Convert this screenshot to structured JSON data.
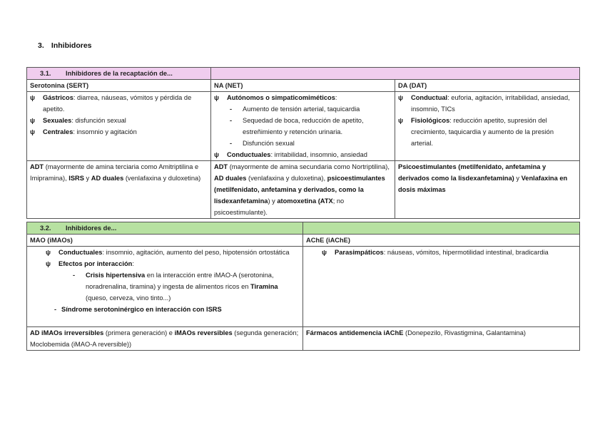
{
  "heading": {
    "number": "3.",
    "text": "Inhibidores"
  },
  "colors": {
    "pink_header": "#f0cdee",
    "green_header": "#b7e1a1"
  },
  "table1": {
    "header": {
      "number": "3.1.",
      "label": "Inhibidores de la recaptación de..."
    },
    "columns": [
      "Serotonina (SERT)",
      "NA (NET)",
      "DA (DAT)"
    ],
    "effects": [
      [
        {
          "type": "bullet",
          "marker": "ψ",
          "segs": [
            {
              "b": true,
              "t": "Gástricos"
            },
            {
              "t": ": diarrea, náuseas, vómitos y pérdida de apetito."
            }
          ]
        },
        {
          "type": "bullet",
          "marker": "ψ",
          "segs": [
            {
              "b": true,
              "t": "Sexuales"
            },
            {
              "t": ": disfunción sexual"
            }
          ]
        },
        {
          "type": "bullet",
          "marker": "ψ",
          "segs": [
            {
              "b": true,
              "t": "Centrales"
            },
            {
              "t": ": insomnio y agitación"
            }
          ]
        }
      ],
      [
        {
          "type": "bullet",
          "marker": "ψ",
          "segs": [
            {
              "b": true,
              "t": "Autónomos o simpaticomiméticos"
            },
            {
              "t": ":"
            }
          ]
        },
        {
          "type": "dash",
          "marker": "-",
          "segs": [
            {
              "t": "Aumento de tensión arterial, taquicardia"
            }
          ]
        },
        {
          "type": "dash",
          "marker": "-",
          "segs": [
            {
              "t": "Sequedad de boca, reducción de apetito, estreñimiento y retención urinaria."
            }
          ]
        },
        {
          "type": "dash",
          "marker": "-",
          "segs": [
            {
              "t": "Disfunción sexual"
            }
          ]
        },
        {
          "type": "bullet",
          "marker": "ψ",
          "segs": [
            {
              "b": true,
              "t": "Conductuales"
            },
            {
              "t": ": irritabilidad, insomnio, ansiedad"
            }
          ]
        }
      ],
      [
        {
          "type": "bullet",
          "marker": "ψ",
          "segs": [
            {
              "b": true,
              "t": "Conductual"
            },
            {
              "t": ": euforia, agitación, irritabilidad, ansiedad, insomnio, TICs"
            }
          ]
        },
        {
          "type": "bullet",
          "marker": "ψ",
          "segs": [
            {
              "b": true,
              "t": "Fisiológicos"
            },
            {
              "t": ": reducción apetito, supresión del crecimiento, taquicardia y aumento de la presión arterial."
            }
          ]
        }
      ]
    ],
    "drugs": [
      [
        {
          "type": "para",
          "segs": [
            {
              "b": true,
              "t": "ADT"
            },
            {
              "t": " (mayormente de amina terciaria como Amitriptilina e Imipramina), "
            },
            {
              "b": true,
              "t": "ISRS"
            },
            {
              "t": " y "
            },
            {
              "b": true,
              "t": "AD duales"
            },
            {
              "t": " (venlafaxina y duloxetina)"
            }
          ]
        }
      ],
      [
        {
          "type": "para",
          "segs": [
            {
              "b": true,
              "t": "ADT"
            },
            {
              "t": " (mayormente de amina secundaria como Nortriptilina), "
            },
            {
              "b": true,
              "t": "AD duales"
            },
            {
              "t": " (venlafaxina y duloxetina), "
            },
            {
              "b": true,
              "t": "psicoestimulantes (metilfenidato, anfetamina y derivados, como la lisdexanfetamina"
            },
            {
              "t": ") y "
            },
            {
              "b": true,
              "t": "atomoxetina (ATX"
            },
            {
              "t": "; no psicoestimulante)."
            }
          ]
        }
      ],
      [
        {
          "type": "para",
          "segs": [
            {
              "b": true,
              "t": "Psicoestimulantes (metilfenidato, anfetamina y derivados como la lisdexanfetamina)"
            },
            {
              "t": " y "
            },
            {
              "b": true,
              "t": "Venlafaxina en dosis máximas"
            }
          ]
        }
      ]
    ]
  },
  "table2": {
    "header": {
      "number": "3.2.",
      "label": "Inhibidores de..."
    },
    "columns": [
      "MAO (iMAOs)",
      "AChE (iAChE)"
    ],
    "effects": [
      [
        {
          "type": "bullet",
          "indent": 1,
          "marker": "ψ",
          "segs": [
            {
              "b": true,
              "t": "Conductuales"
            },
            {
              "t": ": insomnio, agitación, aumento del peso, hipotensión ortostática"
            }
          ]
        },
        {
          "type": "bullet",
          "indent": 1,
          "marker": "ψ",
          "segs": [
            {
              "b": true,
              "t": "Efectos por interacción"
            },
            {
              "t": ":"
            }
          ]
        },
        {
          "type": "dash",
          "indent": 2,
          "marker": "-",
          "segs": [
            {
              "b": true,
              "t": "Crisis hipertensiva"
            },
            {
              "t": " en la interacción entre iMAO-A (serotonina, noradrenalina, tiramina) y ingesta de alimentos ricos en "
            },
            {
              "b": true,
              "t": "Tiramina"
            },
            {
              "t": " (queso, cerveza, vino tinto...)"
            }
          ]
        },
        {
          "type": "dash",
          "indent": 1,
          "marker": "-",
          "segs": [
            {
              "b": true,
              "t": "Síndrome serotoninérgico en interacción con ISRS"
            }
          ]
        }
      ],
      [
        {
          "type": "bullet",
          "indent": 1,
          "marker": "ψ",
          "segs": [
            {
              "b": true,
              "t": "Parasimpáticos"
            },
            {
              "t": ": náuseas, vómitos, hipermotilidad intestinal, bradicardia"
            }
          ]
        }
      ]
    ],
    "drugs": [
      [
        {
          "type": "para",
          "segs": [
            {
              "b": true,
              "t": "AD iMAOs irreversibles"
            },
            {
              "t": " (primera generación) e "
            },
            {
              "b": true,
              "t": "iMAOs reversibles"
            },
            {
              "t": " (segunda generación; Moclobemida (iMAO-A reversible))"
            }
          ]
        }
      ],
      [
        {
          "type": "para",
          "segs": [
            {
              "b": true,
              "t": "Fármacos antidemencia iAChE"
            },
            {
              "t": " (Donepezilo, Rivastigmina, Galantamina)"
            }
          ]
        }
      ]
    ]
  }
}
